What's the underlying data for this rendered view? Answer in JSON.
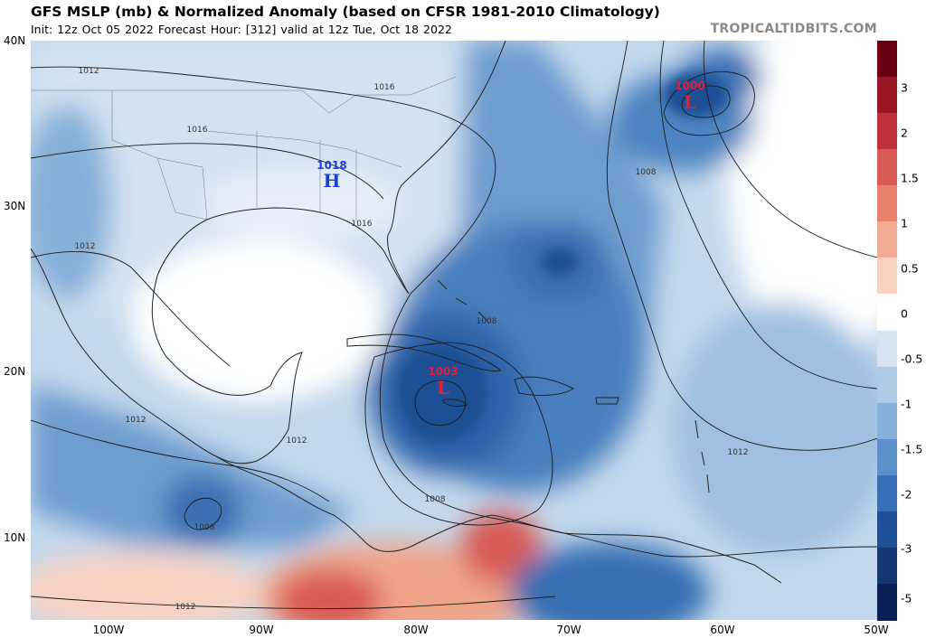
{
  "title": "GFS MSLP (mb) & Normalized Anomaly (based on CFSR 1981-2010 Climatology)",
  "subtitle": "Init: 12z Oct 05 2022   Forecast Hour: [312]   valid at 12z Tue, Oct 18 2022",
  "brand": "TROPICALTIDBITS.COM",
  "lat_labels": [
    "40N",
    "30N",
    "20N",
    "10N"
  ],
  "lon_labels": [
    "100W",
    "90W",
    "80W",
    "70W",
    "60W",
    "50W"
  ],
  "colorbar": {
    "ticks": [
      "3",
      "2",
      "1.5",
      "1",
      "0.5",
      "0",
      "-0.5",
      "-1",
      "-1.5",
      "-2",
      "-3",
      "-5"
    ],
    "colors_top_to_bottom": [
      "#6b0014",
      "#9a1626",
      "#c0303a",
      "#d85a54",
      "#e8826f",
      "#f1ab94",
      "#f8d3c4",
      "#ffffff",
      "#d6e4f2",
      "#aecbe6",
      "#86b0d8",
      "#5b90c8",
      "#3770b4",
      "#1f4f94",
      "#143672",
      "#0b1f52"
    ]
  },
  "pressure_centers": [
    {
      "type": "H",
      "value": "1018",
      "color": "#1a3fd6"
    },
    {
      "type": "L",
      "value": "1003",
      "color": "#e0203a"
    },
    {
      "type": "L",
      "value": "1000",
      "color": "#e0203a"
    }
  ],
  "isobar_labels": [
    "1012",
    "1016",
    "1016",
    "1016",
    "1012",
    "1012",
    "1012",
    "1008",
    "1008",
    "1008",
    "1008",
    "1012",
    "1012"
  ]
}
